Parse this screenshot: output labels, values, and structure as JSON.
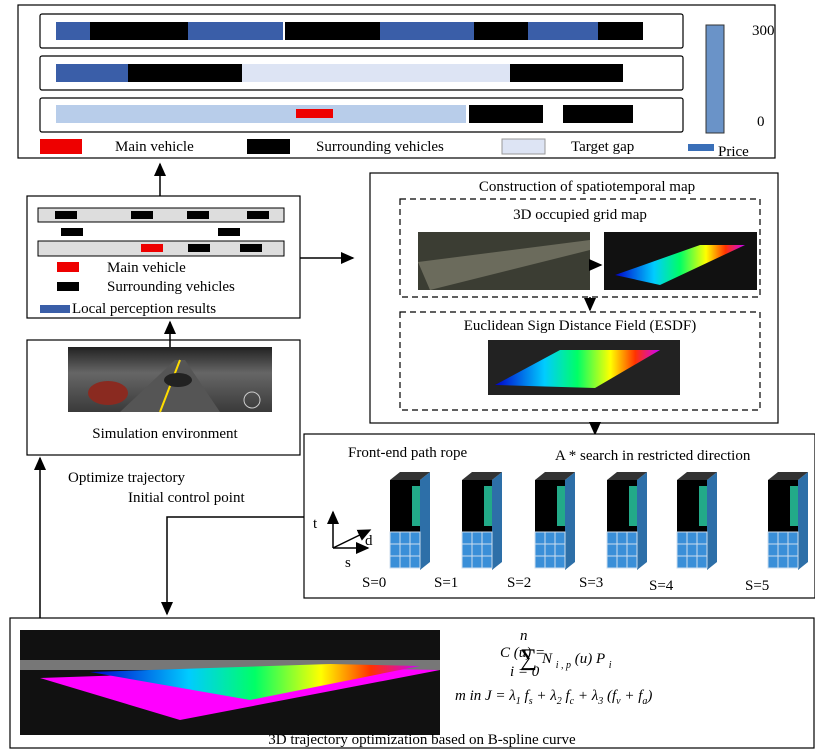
{
  "legend": {
    "main_vehicle": "Main vehicle",
    "surrounding_vehicles": "Surrounding vehicles",
    "target_gap": "Target gap",
    "price": "Price",
    "price_max": "300",
    "price_min": "0"
  },
  "local_perception": {
    "main_vehicle": "Main vehicle",
    "surrounding_vehicles": "Surrounding vehicles",
    "results": "Local perception results"
  },
  "simulation": {
    "label": "Simulation environment"
  },
  "spatiotemporal_map": {
    "title": "Construction of spatiotemporal map",
    "grid_map": "3D occupied grid map",
    "esdf": "Euclidean Sign Distance Field (ESDF)"
  },
  "front_end": {
    "title": "Front-end path rope",
    "search": "A * search in restricted direction",
    "axis_t": "t",
    "axis_d": "d",
    "axis_s": "s",
    "stages": [
      "S=0",
      "S=1",
      "S=2",
      "S=3",
      "S=4",
      "S=5"
    ]
  },
  "feedback": {
    "optimize": "Optimize trajectory",
    "initial": "Initial control point"
  },
  "optimization": {
    "caption": "3D trajectory optimization based on B-spline curve",
    "formula_1": {
      "lhs": "C (u) =",
      "sum": "∑",
      "upper": "n",
      "lower": "i = 0",
      "term": "N",
      "term_sub": "i , p",
      "rest": "(u) P",
      "rest_sub": "i"
    },
    "formula_2": [
      "m in J = λ",
      "1",
      " f",
      "s",
      " + λ",
      "2",
      " f",
      "c",
      " + λ",
      "3",
      " (f",
      "v",
      " + f",
      "a",
      ")"
    ]
  }
}
